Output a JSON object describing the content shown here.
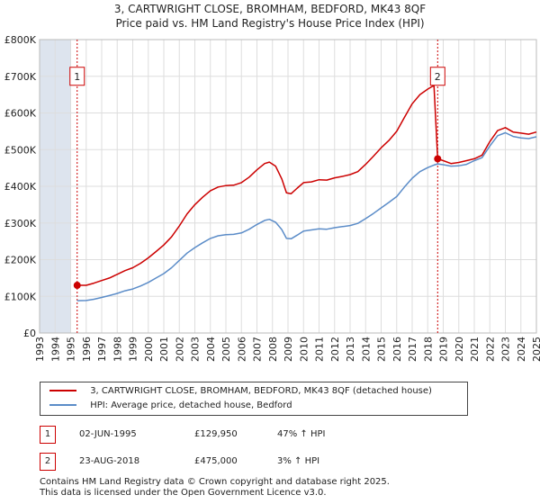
{
  "title_line1": "3, CARTWRIGHT CLOSE, BROMHAM, BEDFORD, MK43 8QF",
  "title_line2": "Price paid vs. HM Land Registry's House Price Index (HPI)",
  "legend": {
    "property_label": "3, CARTWRIGHT CLOSE, BROMHAM, BEDFORD, MK43 8QF (detached house)",
    "hpi_label": "HPI: Average price, detached house, Bedford"
  },
  "sales": [
    {
      "marker": "1",
      "date": "02-JUN-1995",
      "price": "£129,950",
      "hpi_change": "47% ↑ HPI"
    },
    {
      "marker": "2",
      "date": "23-AUG-2018",
      "price": "£475,000",
      "hpi_change": "3% ↑ HPI"
    }
  ],
  "footer_line1": "Contains HM Land Registry data © Crown copyright and database right 2025.",
  "footer_line2": "This data is licensed under the Open Government Licence v3.0.",
  "colors": {
    "property": "#cc0000",
    "hpi": "#5b8cc8",
    "grid": "#dddddd",
    "shade": "#dde4ee",
    "marker": "#cc0000"
  },
  "chart_data": {
    "type": "line",
    "title": "Price paid vs. HM Land Registry's House Price Index (HPI)",
    "xlabel": "",
    "ylabel": "",
    "xlim": [
      1993,
      2025
    ],
    "ylim": [
      0,
      800000
    ],
    "y_ticks": [
      {
        "value": 0,
        "label": "£0"
      },
      {
        "value": 100000,
        "label": "£100K"
      },
      {
        "value": 200000,
        "label": "£200K"
      },
      {
        "value": 300000,
        "label": "£300K"
      },
      {
        "value": 400000,
        "label": "£400K"
      },
      {
        "value": 500000,
        "label": "£500K"
      },
      {
        "value": 600000,
        "label": "£600K"
      },
      {
        "value": 700000,
        "label": "£700K"
      },
      {
        "value": 800000,
        "label": "£800K"
      }
    ],
    "x_ticks": [
      "1993",
      "1994",
      "1995",
      "1996",
      "1997",
      "1998",
      "1999",
      "2000",
      "2001",
      "2002",
      "2003",
      "2004",
      "2005",
      "2006",
      "2007",
      "2008",
      "2009",
      "2010",
      "2011",
      "2012",
      "2013",
      "2014",
      "2015",
      "2016",
      "2017",
      "2018",
      "2019",
      "2020",
      "2021",
      "2022",
      "2023",
      "2024",
      "2025"
    ],
    "shaded_ranges": [
      [
        1993,
        1995.0
      ],
      [
        2025,
        2025.4
      ]
    ],
    "series": [
      {
        "name": "3, CARTWRIGHT CLOSE, BROMHAM, BEDFORD, MK43 8QF (detached house)",
        "color": "#cc0000",
        "x": [
          1995.42,
          1996,
          1996.5,
          1997,
          1997.5,
          1998,
          1998.5,
          1999,
          1999.5,
          2000,
          2000.5,
          2001,
          2001.5,
          2002,
          2002.5,
          2003,
          2003.5,
          2004,
          2004.5,
          2005,
          2005.5,
          2006,
          2006.5,
          2007,
          2007.5,
          2007.8,
          2008.2,
          2008.6,
          2008.9,
          2009.2,
          2009.6,
          2010,
          2010.5,
          2011,
          2011.5,
          2012,
          2012.5,
          2013,
          2013.5,
          2014,
          2014.5,
          2015,
          2015.5,
          2016,
          2016.5,
          2017,
          2017.5,
          2018,
          2018.4,
          2018.64,
          2019,
          2019.5,
          2020,
          2020.5,
          2021,
          2021.5,
          2022,
          2022.5,
          2023,
          2023.5,
          2024,
          2024.5,
          2025
        ],
        "y": [
          129950,
          130000,
          136000,
          143000,
          150000,
          160000,
          170000,
          178000,
          190000,
          205000,
          222000,
          240000,
          262000,
          292000,
          325000,
          350000,
          370000,
          388000,
          398000,
          402000,
          403000,
          410000,
          425000,
          445000,
          462000,
          466000,
          455000,
          420000,
          382000,
          380000,
          395000,
          410000,
          412000,
          418000,
          417000,
          423000,
          427000,
          432000,
          440000,
          460000,
          482000,
          505000,
          525000,
          550000,
          588000,
          625000,
          650000,
          665000,
          675000,
          475000,
          470000,
          462000,
          465000,
          470000,
          475000,
          485000,
          522000,
          552000,
          560000,
          548000,
          545000,
          542000,
          548000
        ]
      },
      {
        "name": "HPI: Average price, detached house, Bedford",
        "color": "#5b8cc8",
        "x": [
          1995.42,
          1996,
          1996.5,
          1997,
          1997.5,
          1998,
          1998.5,
          1999,
          1999.5,
          2000,
          2000.5,
          2001,
          2001.5,
          2002,
          2002.5,
          2003,
          2003.5,
          2004,
          2004.5,
          2005,
          2005.5,
          2006,
          2006.5,
          2007,
          2007.5,
          2007.8,
          2008.2,
          2008.6,
          2008.9,
          2009.2,
          2009.6,
          2010,
          2010.5,
          2011,
          2011.5,
          2012,
          2012.5,
          2013,
          2013.5,
          2014,
          2014.5,
          2015,
          2015.5,
          2016,
          2016.5,
          2017,
          2017.5,
          2018,
          2018.4,
          2018.64,
          2019,
          2019.5,
          2020,
          2020.5,
          2021,
          2021.5,
          2022,
          2022.5,
          2023,
          2023.5,
          2024,
          2024.5,
          2025
        ],
        "y": [
          88000,
          88500,
          92000,
          97000,
          102000,
          108000,
          115000,
          120000,
          128000,
          138000,
          150000,
          162000,
          178000,
          198000,
          218000,
          233000,
          246000,
          258000,
          265000,
          268000,
          269000,
          273000,
          283000,
          296000,
          307000,
          310000,
          302000,
          282000,
          258000,
          257000,
          267000,
          278000,
          281000,
          284000,
          283000,
          287000,
          290000,
          293000,
          299000,
          312000,
          326000,
          341000,
          356000,
          372000,
          398000,
          422000,
          440000,
          451000,
          458000,
          461000,
          459000,
          455000,
          456000,
          460000,
          470000,
          478000,
          510000,
          538000,
          546000,
          536000,
          532000,
          530000,
          535000
        ]
      }
    ],
    "sale_markers": [
      {
        "label": "1",
        "x": 1995.42,
        "y": 129950
      },
      {
        "label": "2",
        "x": 2018.64,
        "y": 475000
      }
    ],
    "marker_box_y": 700000
  }
}
